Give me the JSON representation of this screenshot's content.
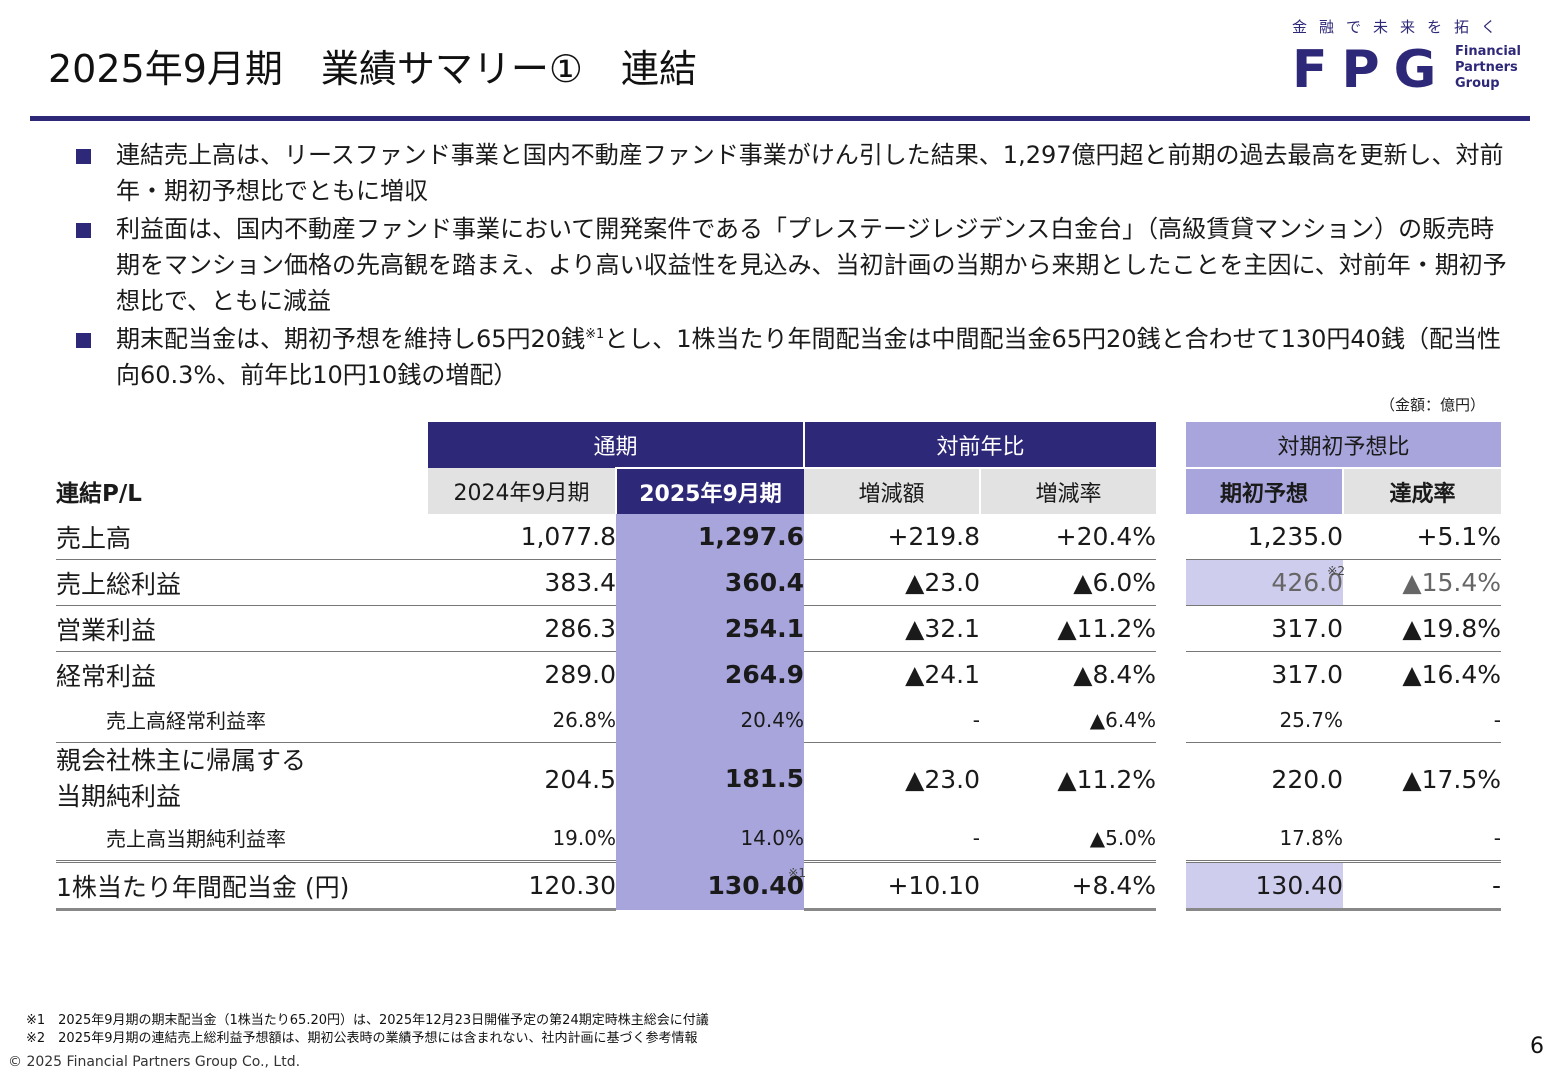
{
  "header": {
    "title": "2025年9月期　業績サマリー①　連結",
    "logo_tagline": "金融で未来を拓く",
    "logo_mark": "FPG",
    "logo_name": [
      "Financial",
      "Partners",
      "Group"
    ]
  },
  "bullets": [
    {
      "text": "連結売上高は、リースファンド事業と国内不動産ファンド事業がけん引した結果、1,297億円超と前期の過去最高を更新し、対前年・期初予想比でともに増収"
    },
    {
      "text": "利益面は、国内不動産ファンド事業において開発案件である「プレステージレジデンス白金台」（高級賃貸マンション）の販売時期をマンション価格の先高観を踏まえ、より高い収益性を見込み、当初計画の当期から来期としたことを主因に、対前年・期初予想比で、ともに減益"
    },
    {
      "text_a": "期末配当金は、期初予想を維持し65円20銭",
      "sup": "※1",
      "text_b": "とし、1株当たり年間配当金は中間配当金65円20銭と合わせて130円40銭（配当性向60.3%、前年比10円10銭の増配）"
    }
  ],
  "unit_label": "（金額：億円）",
  "table": {
    "group_headers": {
      "annual": "通期",
      "yoy": "対前年比",
      "plan": "対期初予想比"
    },
    "corner_label": "連結P/L",
    "col_headers": [
      "2024年9月期",
      "2025年9月期",
      "増減額",
      "増減率",
      "期初予想",
      "達成率"
    ],
    "rows": [
      {
        "label": "売上高",
        "v2024": "1,077.8",
        "v2025": "1,297.6",
        "diff": "+219.8",
        "rate": "+20.4%",
        "plan": "1,235.0",
        "ach": "+5.1%"
      },
      {
        "label": "売上総利益",
        "v2024": "383.4",
        "v2025": "360.4",
        "diff": "▲23.0",
        "rate": "▲6.0%",
        "plan": "426.0",
        "plan_note": "※2",
        "ach": "▲15.4%"
      },
      {
        "label": "営業利益",
        "v2024": "286.3",
        "v2025": "254.1",
        "diff": "▲32.1",
        "rate": "▲11.2%",
        "plan": "317.0",
        "ach": "▲19.8%"
      },
      {
        "label": "経常利益",
        "v2024": "289.0",
        "v2025": "264.9",
        "diff": "▲24.1",
        "rate": "▲8.4%",
        "plan": "317.0",
        "ach": "▲16.4%"
      },
      {
        "label": "売上高経常利益率",
        "v2024": "26.8%",
        "v2025": "20.4%",
        "diff": "-",
        "rate": "▲6.4%",
        "plan": "25.7%",
        "ach": "-"
      },
      {
        "label_1": "親会社株主に帰属する",
        "label_2": "当期純利益",
        "v2024": "204.5",
        "v2025": "181.5",
        "diff": "▲23.0",
        "rate": "▲11.2%",
        "plan": "220.0",
        "ach": "▲17.5%"
      },
      {
        "label": "売上高当期純利益率",
        "v2024": "19.0%",
        "v2025": "14.0%",
        "diff": "-",
        "rate": "▲5.0%",
        "plan": "17.8%",
        "ach": "-"
      },
      {
        "label": "1株当たり年間配当金 (円)",
        "v2024": "120.30",
        "v2025": "130.40",
        "v2025_note": "※1",
        "diff": "+10.10",
        "rate": "+8.4%",
        "plan": "130.40",
        "ach": "-"
      }
    ]
  },
  "footnotes": [
    "※1　2025年9月期の期末配当金（1株当たり65.20円）は、2025年12月23日開催予定の第24期定時株主総会に付議",
    "※2　2025年9月期の連結売上総利益予想額は、期初公表時の業績予想には含まれない、社内計画に基づく参考情報"
  ],
  "copyright": "© 2025 Financial Partners Group Co., Ltd.",
  "page_number": "6"
}
